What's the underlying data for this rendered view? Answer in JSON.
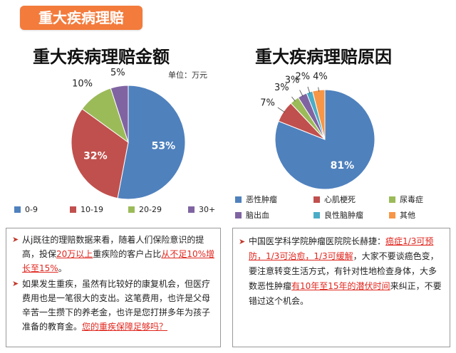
{
  "header": {
    "badge": "重大疾病理赔"
  },
  "chart_data": [
    {
      "type": "pie",
      "title": "重大疾病理赔金额",
      "unit": "单位：万元",
      "categories": [
        "0-9",
        "10-19",
        "20-29",
        "30+"
      ],
      "values": [
        53,
        32,
        10,
        5
      ],
      "labels": [
        "53%",
        "32%",
        "10%",
        "5%"
      ],
      "colors": [
        "#4f81bd",
        "#c0504d",
        "#9bbb59",
        "#8064a2"
      ],
      "legend_position": "bottom"
    },
    {
      "type": "pie",
      "title": "重大疾病理赔原因",
      "categories": [
        "恶性肿瘤",
        "心肌梗死",
        "尿毒症",
        "脑出血",
        "良性脑肿瘤",
        "其他"
      ],
      "values": [
        81,
        7,
        3,
        3,
        2,
        4
      ],
      "labels": [
        "81%",
        "7%",
        "3%",
        "3%",
        "2%",
        "4%"
      ],
      "colors": [
        "#4f81bd",
        "#c0504d",
        "#9bbb59",
        "#8064a2",
        "#4bacc6",
        "#f79646"
      ],
      "legend_position": "bottom"
    }
  ],
  "notes": {
    "left": {
      "p1": [
        "从j既往的理赔数据来看，随着人们保险意识的提高，投保",
        "20万以上",
        "重疾险的客户占比",
        "从不足10%增长至15%",
        "。"
      ],
      "p2": [
        "如果发生重疾，虽然有比较好的康复机会，但医疗费用也是一笔很大的支出。这笔费用，也许是父母辛苦一生攒下的养老金，也许是您打拼多年为孩子准备的教育金。",
        "您的重疾保障足够吗？"
      ]
    },
    "right": {
      "p1": [
        "中国医学科学院肿瘤医院院长赫捷：",
        "癌症1/3可预防，1/3可治愈，1/3可缓解",
        "，大家不要谈癌色变，要注意转变生活方式，有针对性地检查身体，大多数恶性肿瘤",
        "有10年至15年的潜伏时间",
        "来纠正，不要错过这个机会。"
      ]
    }
  }
}
